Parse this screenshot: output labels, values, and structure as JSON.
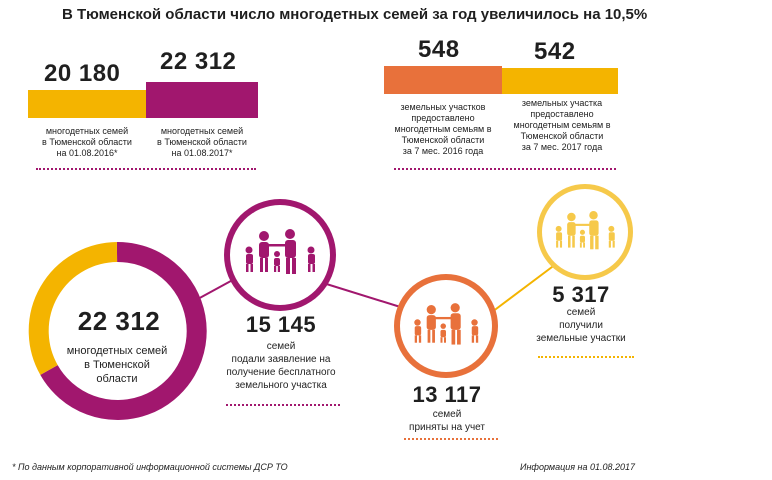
{
  "title": "В Тюменской области число многодетных семей за год увеличилось на 10,5%",
  "families": {
    "v2016": "20 180",
    "v2017": "22 312",
    "l2016": [
      "многодетных семей",
      "в Тюменской области",
      "на 01.08.2016*"
    ],
    "l2017": [
      "многодетных семей",
      "в Тюменской области",
      "на 01.08.2017*"
    ]
  },
  "land": {
    "v2016": "548",
    "v2017": "542",
    "l2016": [
      "земельных участков",
      "предоставлено",
      "многодетным семьям в",
      "Тюменской области",
      "за 7 мес. 2016 года"
    ],
    "l2017": [
      "земельных участка",
      "предоставлено",
      "многодетным семьям в",
      "Тюменской области",
      "за 7 мес. 2017 года"
    ]
  },
  "ring": {
    "value": "22 312",
    "label": [
      "многодетных семей",
      "в Тюменской",
      "области"
    ]
  },
  "applied": {
    "value": "15 145",
    "label": [
      "семей",
      "подали заявление на",
      "получение бесплатного",
      "земельного участка"
    ]
  },
  "accepted": {
    "value": "13 117",
    "label": [
      "семей",
      "приняты на учет"
    ]
  },
  "received": {
    "value": "5 317",
    "label": [
      "семей",
      "получили",
      "земельные участки"
    ]
  },
  "footer": {
    "note": "* По данным корпоративной информационной системы ДСР ТО",
    "info": "Информация на 01.08.2017"
  },
  "colors": {
    "magenta": "#a1176e",
    "yellow": "#f4b400",
    "orange": "#e8713b",
    "lightyellow": "#f6c94a"
  },
  "icons": [
    "family-icon"
  ]
}
